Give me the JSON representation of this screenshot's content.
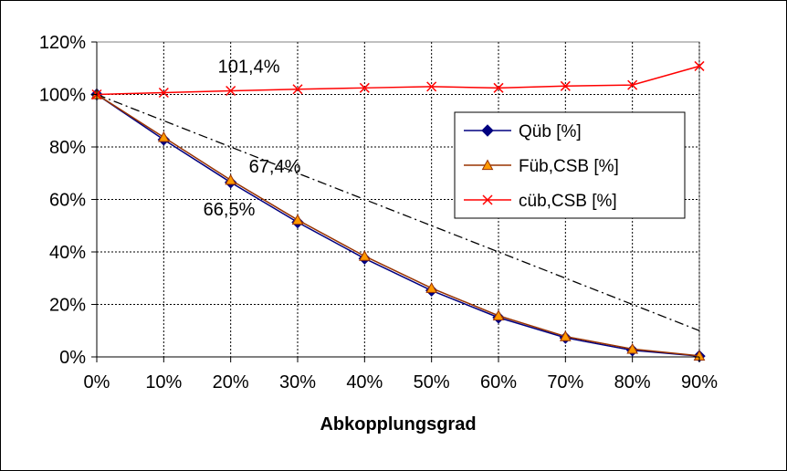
{
  "chart_data": {
    "type": "line",
    "title": "",
    "xlabel": "Abkopplungsgrad",
    "ylabel": "",
    "x": [
      0,
      10,
      20,
      30,
      40,
      50,
      60,
      70,
      80,
      90
    ],
    "x_tick_labels": [
      "0%",
      "10%",
      "20%",
      "30%",
      "40%",
      "50%",
      "60%",
      "70%",
      "80%",
      "90%"
    ],
    "y_tick_labels": [
      "0%",
      "20%",
      "40%",
      "60%",
      "80%",
      "100%",
      "120%"
    ],
    "ylim": [
      0,
      120
    ],
    "grid": true,
    "legend_position": "right",
    "series": [
      {
        "name": "Qüb [%]",
        "color": "#000080",
        "marker": "diamond",
        "values": [
          100,
          82.8,
          66.5,
          51.3,
          37.5,
          25.3,
          15.0,
          7.3,
          2.5,
          0.3
        ]
      },
      {
        "name": "Füb,CSB [%]",
        "color": "#993300",
        "marker": "triangle",
        "marker_fill": "#FF9900",
        "values": [
          100,
          83.7,
          67.4,
          52.2,
          38.4,
          26.2,
          15.7,
          7.8,
          3.0,
          0.4
        ]
      },
      {
        "name": "cüb,CSB [%]",
        "color": "#FF0000",
        "marker": "x",
        "values": [
          100,
          100.7,
          101.4,
          102.0,
          102.5,
          103.0,
          102.5,
          103.2,
          103.6,
          110.8
        ]
      }
    ],
    "reference_line": {
      "style": "dash-dot",
      "color": "#000000",
      "values": [
        100,
        90,
        80,
        70,
        60,
        50,
        40,
        30,
        20,
        10
      ]
    },
    "annotations": [
      {
        "text": "101,4%",
        "x": 20,
        "y": 101.4
      },
      {
        "text": "67,4%",
        "x": 20,
        "y": 67.4
      },
      {
        "text": "66,5%",
        "x": 20,
        "y": 66.5
      }
    ]
  }
}
